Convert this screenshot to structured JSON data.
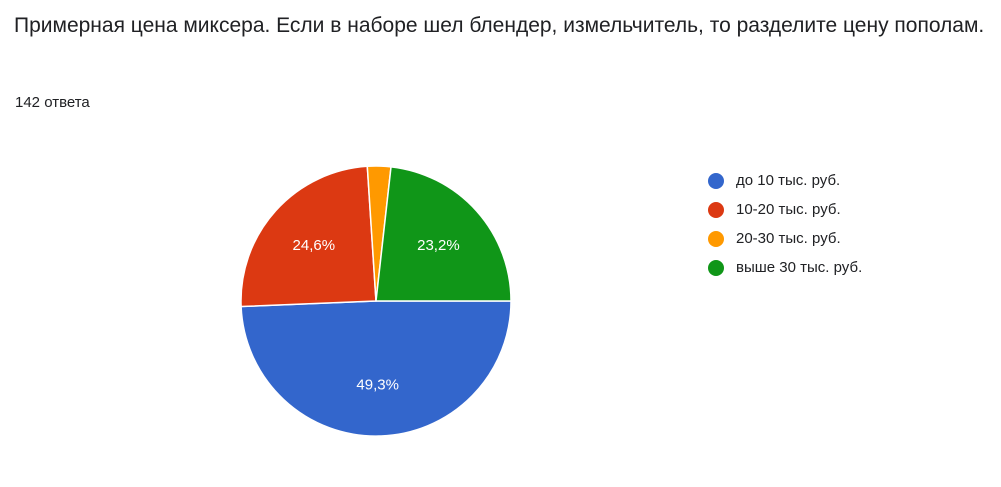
{
  "question": {
    "title": "Примерная цена миксера. Если в наборе шел блендер, измельчитель, то разделите цену пополам.",
    "response_count": "142 ответа"
  },
  "chart_data": {
    "type": "pie",
    "categories": [
      "до 10 тыс. руб.",
      "10-20 тыс. руб.",
      "20-30 тыс. руб.",
      "выше 30 тыс. руб."
    ],
    "values": [
      49.3,
      24.6,
      2.8,
      23.2
    ],
    "value_labels": [
      "49,3%",
      "24,6%",
      "",
      "23,2%"
    ],
    "colors": [
      "#3366cc",
      "#dc3912",
      "#ff9900",
      "#109618"
    ],
    "legend_position": "right",
    "start": "3 o'clock",
    "direction": "clockwise"
  }
}
